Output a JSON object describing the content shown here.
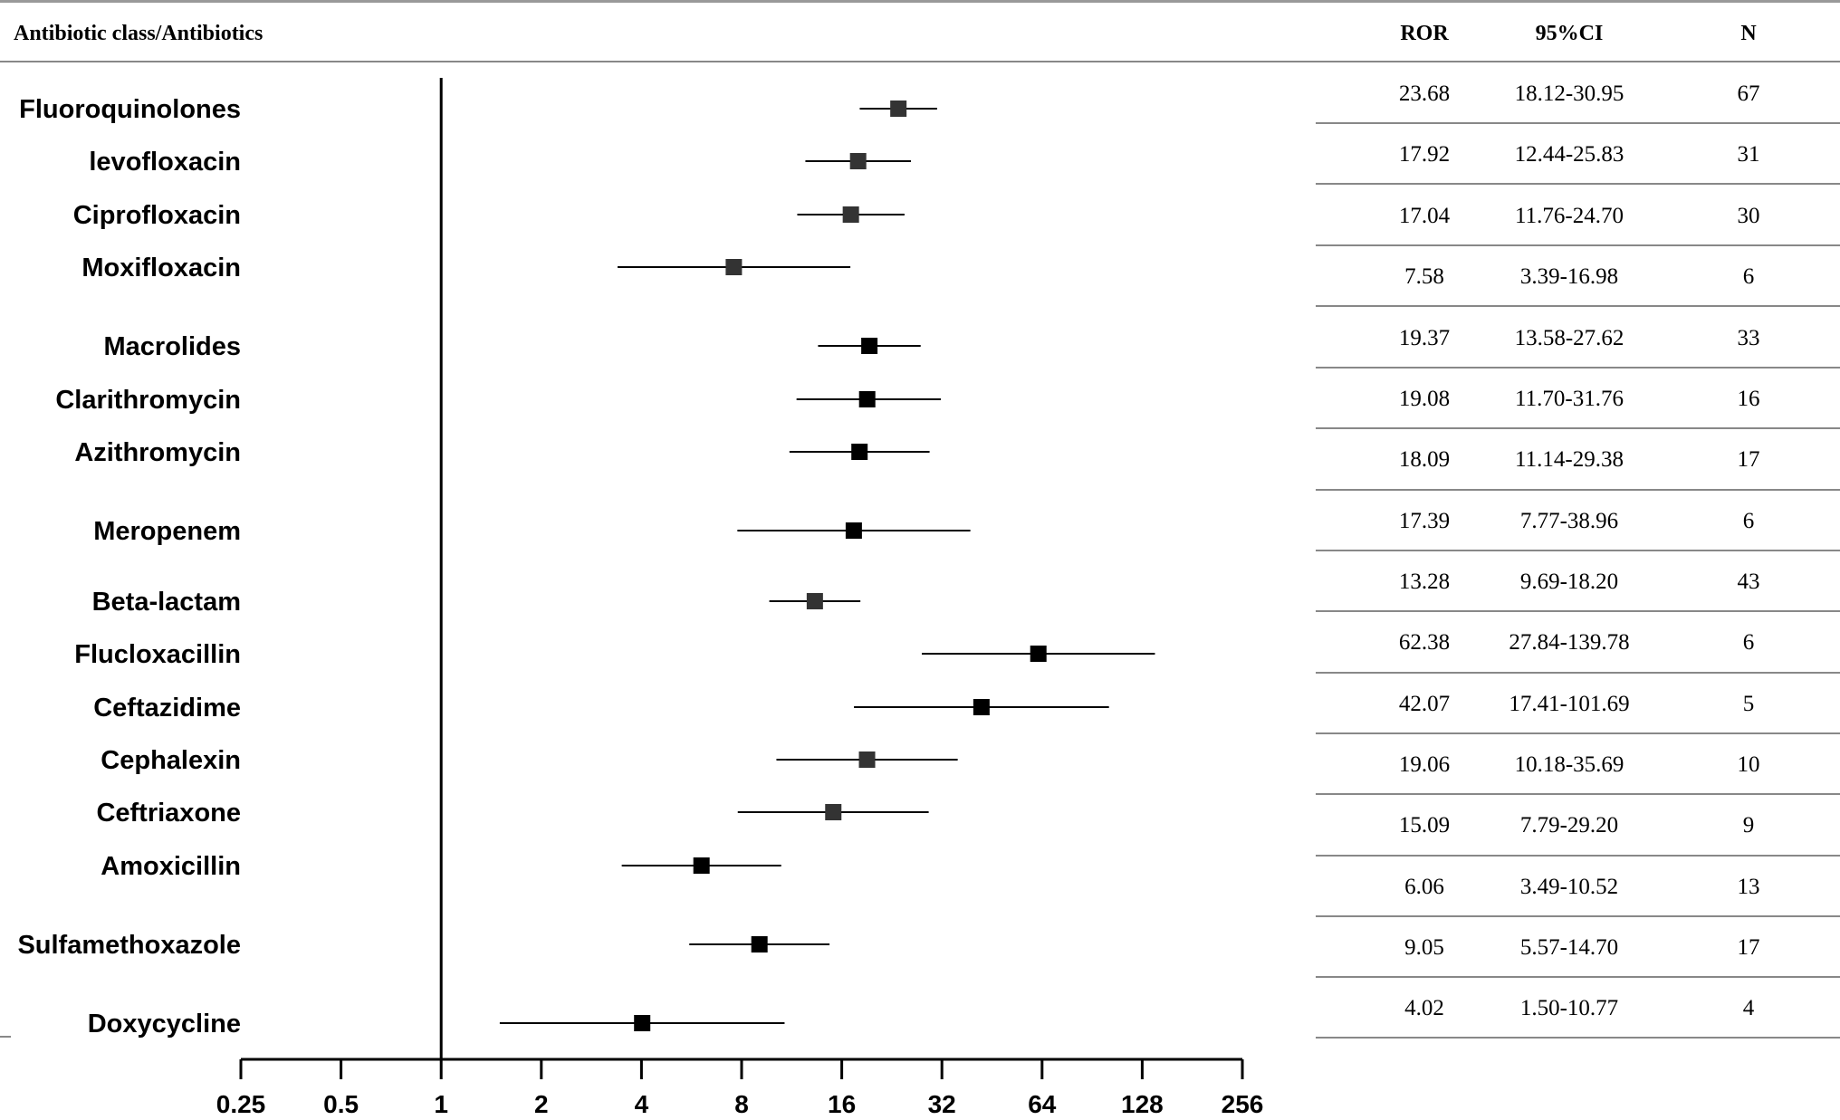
{
  "chart_data": {
    "type": "forest",
    "header": {
      "label_column": "Antibiotic class/Antibiotics",
      "ror": "ROR",
      "ci": "95%CI",
      "n": "N"
    },
    "x_scale": "log2",
    "xlim": [
      0.25,
      256
    ],
    "reference_line": 1,
    "x_ticks": [
      "0.25",
      "0.5",
      "1",
      "2",
      "4",
      "8",
      "16",
      "32",
      "64",
      "128",
      "256"
    ],
    "rows": [
      {
        "label": "Fluoroquinolones",
        "ror": 23.68,
        "lo": 18.12,
        "hi": 30.95,
        "ror_text": "23.68",
        "ci_text": "18.12-30.95",
        "n_text": "67",
        "marker_color": "#333333"
      },
      {
        "label": "levofloxacin",
        "ror": 17.92,
        "lo": 12.44,
        "hi": 25.83,
        "ror_text": "17.92",
        "ci_text": "12.44-25.83",
        "n_text": "31",
        "marker_color": "#333333"
      },
      {
        "label": "Ciprofloxacin",
        "ror": 17.04,
        "lo": 11.76,
        "hi": 24.7,
        "ror_text": "17.04",
        "ci_text": "11.76-24.70",
        "n_text": "30",
        "marker_color": "#333333"
      },
      {
        "label": "Moxifloxacin",
        "ror": 7.58,
        "lo": 3.39,
        "hi": 16.98,
        "ror_text": "7.58",
        "ci_text": "3.39-16.98",
        "n_text": "6",
        "marker_color": "#333333"
      },
      {
        "label": "Macrolides",
        "ror": 19.37,
        "lo": 13.58,
        "hi": 27.62,
        "ror_text": "19.37",
        "ci_text": "13.58-27.62",
        "n_text": "33",
        "marker_color": "#000000"
      },
      {
        "label": "Clarithromycin",
        "ror": 19.08,
        "lo": 11.7,
        "hi": 31.76,
        "ror_text": "19.08",
        "ci_text": "11.70-31.76",
        "n_text": "16",
        "marker_color": "#000000"
      },
      {
        "label": "Azithromycin",
        "ror": 18.09,
        "lo": 11.14,
        "hi": 29.38,
        "ror_text": "18.09",
        "ci_text": "11.14-29.38",
        "n_text": "17",
        "marker_color": "#000000"
      },
      {
        "label": "Meropenem",
        "ror": 17.39,
        "lo": 7.77,
        "hi": 38.96,
        "ror_text": "17.39",
        "ci_text": "7.77-38.96",
        "n_text": "6",
        "marker_color": "#000000"
      },
      {
        "label": "Beta-lactam",
        "ror": 13.28,
        "lo": 9.69,
        "hi": 18.2,
        "ror_text": "13.28",
        "ci_text": "9.69-18.20",
        "n_text": "43",
        "marker_color": "#333333"
      },
      {
        "label": "Flucloxacillin",
        "ror": 62.38,
        "lo": 27.84,
        "hi": 139.78,
        "ror_text": "62.38",
        "ci_text": "27.84-139.78",
        "n_text": "6",
        "marker_color": "#000000"
      },
      {
        "label": "Ceftazidime",
        "ror": 42.07,
        "lo": 17.41,
        "hi": 101.69,
        "ror_text": "42.07",
        "ci_text": "17.41-101.69",
        "n_text": "5",
        "marker_color": "#000000"
      },
      {
        "label": "Cephalexin",
        "ror": 19.06,
        "lo": 10.18,
        "hi": 35.69,
        "ror_text": "19.06",
        "ci_text": "10.18-35.69",
        "n_text": "10",
        "marker_color": "#333333"
      },
      {
        "label": "Ceftriaxone",
        "ror": 15.09,
        "lo": 7.79,
        "hi": 29.2,
        "ror_text": "15.09",
        "ci_text": "7.79-29.20",
        "n_text": "9",
        "marker_color": "#333333"
      },
      {
        "label": "Amoxicillin",
        "ror": 6.06,
        "lo": 3.49,
        "hi": 10.52,
        "ror_text": "6.06",
        "ci_text": "3.49-10.52",
        "n_text": "13",
        "marker_color": "#000000"
      },
      {
        "label": "Sulfamethoxazole",
        "ror": 9.05,
        "lo": 5.57,
        "hi": 14.7,
        "ror_text": "9.05",
        "ci_text": "5.57-14.70",
        "n_text": "17",
        "marker_color": "#000000"
      },
      {
        "label": "Doxycycline",
        "ror": 4.02,
        "lo": 1.5,
        "hi": 10.77,
        "ror_text": "4.02",
        "ci_text": "1.50-10.77",
        "n_text": "4",
        "marker_color": "#000000"
      }
    ]
  }
}
